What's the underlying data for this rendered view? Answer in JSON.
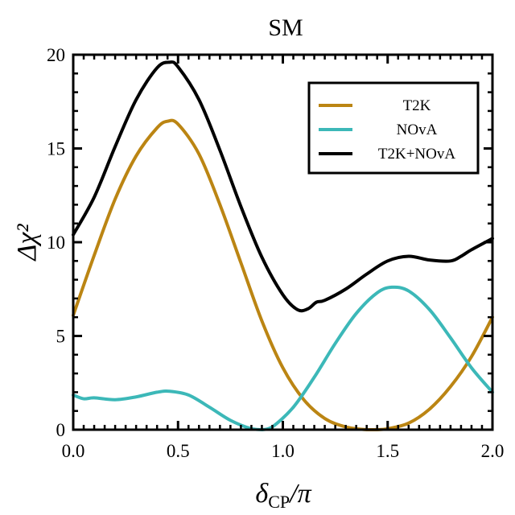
{
  "chart_data": {
    "type": "line",
    "title": "SM",
    "xlabel": "δCP/π",
    "ylabel": "Δχ²",
    "xlim": [
      0,
      2
    ],
    "ylim": [
      0,
      20
    ],
    "xticks": [
      {
        "value": 0.0,
        "label": "0.0"
      },
      {
        "value": 0.5,
        "label": "0.5"
      },
      {
        "value": 1.0,
        "label": "1.0"
      },
      {
        "value": 1.5,
        "label": "1.5"
      },
      {
        "value": 2.0,
        "label": "2.0"
      }
    ],
    "yticks": [
      {
        "value": 0,
        "label": "0"
      },
      {
        "value": 5,
        "label": "5"
      },
      {
        "value": 10,
        "label": "10"
      },
      {
        "value": 15,
        "label": "15"
      },
      {
        "value": 20,
        "label": "20"
      }
    ],
    "legend_position": "top-right",
    "series": [
      {
        "name": "T2K",
        "color": "#BB8513",
        "x": [
          0.0,
          0.1,
          0.2,
          0.3,
          0.4,
          0.45,
          0.5,
          0.6,
          0.7,
          0.8,
          0.9,
          1.0,
          1.1,
          1.2,
          1.3,
          1.4,
          1.45,
          1.5,
          1.6,
          1.7,
          1.8,
          1.9,
          2.0
        ],
        "y": [
          6.1,
          9.3,
          12.3,
          14.6,
          16.1,
          16.45,
          16.3,
          14.7,
          12.0,
          8.9,
          5.8,
          3.3,
          1.6,
          0.6,
          0.15,
          0.0,
          0.0,
          0.05,
          0.35,
          1.1,
          2.3,
          3.9,
          6.0
        ]
      },
      {
        "name": "NOvA",
        "color": "#3CB8B8",
        "x": [
          0.0,
          0.05,
          0.1,
          0.2,
          0.3,
          0.4,
          0.46,
          0.55,
          0.65,
          0.75,
          0.85,
          0.9,
          0.95,
          1.05,
          1.15,
          1.25,
          1.35,
          1.45,
          1.52,
          1.6,
          1.7,
          1.8,
          1.9,
          2.0
        ],
        "y": [
          1.85,
          1.65,
          1.7,
          1.6,
          1.75,
          2.0,
          2.05,
          1.85,
          1.2,
          0.5,
          0.05,
          0.0,
          0.15,
          1.2,
          2.8,
          4.6,
          6.2,
          7.3,
          7.6,
          7.4,
          6.4,
          4.9,
          3.3,
          2.0
        ]
      },
      {
        "name": "T2K+NOvA",
        "color": "#000000",
        "x": [
          0.0,
          0.1,
          0.2,
          0.3,
          0.4,
          0.46,
          0.5,
          0.6,
          0.7,
          0.8,
          0.9,
          1.0,
          1.07,
          1.12,
          1.16,
          1.2,
          1.3,
          1.4,
          1.5,
          1.6,
          1.7,
          1.8,
          1.85,
          1.9,
          2.0
        ],
        "y": [
          10.4,
          12.4,
          15.1,
          17.6,
          19.3,
          19.6,
          19.35,
          17.6,
          14.9,
          11.9,
          9.2,
          7.2,
          6.4,
          6.45,
          6.8,
          6.9,
          7.5,
          8.3,
          9.0,
          9.25,
          9.05,
          9.0,
          9.25,
          9.6,
          10.2
        ]
      }
    ]
  }
}
